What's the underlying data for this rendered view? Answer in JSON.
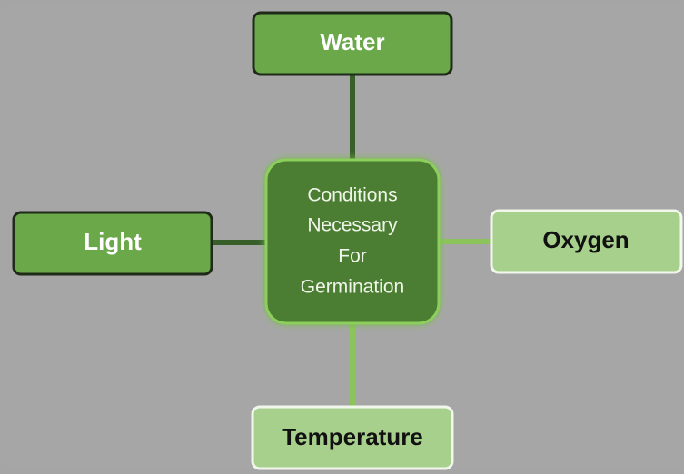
{
  "center": {
    "lines": [
      "Conditions",
      "Necessary",
      "For",
      "Germination"
    ]
  },
  "nodes": [
    {
      "label": "Water"
    },
    {
      "label": "Light"
    },
    {
      "label": "Oxygen"
    },
    {
      "label": "Temperature"
    }
  ]
}
